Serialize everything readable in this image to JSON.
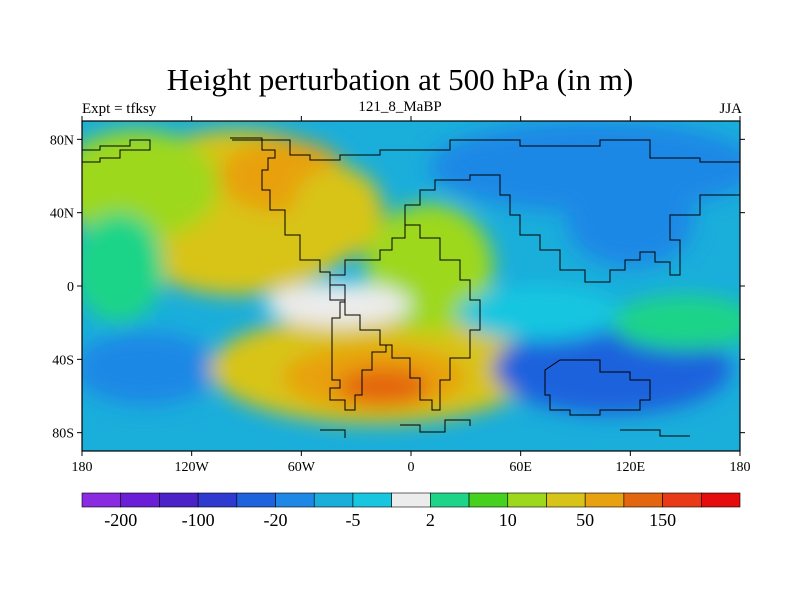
{
  "chart_data": {
    "type": "heatmap",
    "title": "Height perturbation at 500 hPa (in m)",
    "left_label": "Expt = tfksy",
    "center_label": "121_8_MaBP",
    "right_label": "JJA",
    "x_ticks": [
      {
        "value": -180,
        "label": "180"
      },
      {
        "value": -120,
        "label": "120W"
      },
      {
        "value": -60,
        "label": "60W"
      },
      {
        "value": 0,
        "label": "0"
      },
      {
        "value": 60,
        "label": "60E"
      },
      {
        "value": 120,
        "label": "120E"
      },
      {
        "value": 180,
        "label": "180"
      }
    ],
    "y_ticks": [
      {
        "value": 80,
        "label": "80N"
      },
      {
        "value": 40,
        "label": "40N"
      },
      {
        "value": 0,
        "label": "0"
      },
      {
        "value": -40,
        "label": "40S"
      },
      {
        "value": -80,
        "label": "80S"
      }
    ],
    "xlim": [
      -180,
      180
    ],
    "ylim": [
      -90,
      90
    ],
    "colorbar": {
      "colors": [
        "#8a2be2",
        "#6a1fd6",
        "#4b22c8",
        "#2f3ad0",
        "#1f62dd",
        "#1e88e6",
        "#1aaedb",
        "#19c6e0",
        "#ececec",
        "#1ed488",
        "#46d11e",
        "#9ed81d",
        "#d8c418",
        "#e8a10f",
        "#e4650f",
        "#e83a18",
        "#e40c0c"
      ],
      "labels": [
        {
          "boundary": 1,
          "label": "-200"
        },
        {
          "boundary": 3,
          "label": "-100"
        },
        {
          "boundary": 5,
          "label": "-20"
        },
        {
          "boundary": 7,
          "label": "-5"
        },
        {
          "boundary": 9,
          "label": "2"
        },
        {
          "boundary": 11,
          "label": "10"
        },
        {
          "boundary": 13,
          "label": "50"
        },
        {
          "boundary": 15,
          "label": "150"
        }
      ]
    },
    "field_blobs": [
      {
        "lon": -95,
        "lat": 40,
        "rx": 70,
        "ry": 45,
        "level": 12
      },
      {
        "lon": -70,
        "lat": 60,
        "rx": 35,
        "ry": 20,
        "level": 13
      },
      {
        "lon": -40,
        "lat": 40,
        "rx": 25,
        "ry": 25,
        "level": 12
      },
      {
        "lon": -150,
        "lat": 55,
        "rx": 45,
        "ry": 30,
        "level": 11
      },
      {
        "lon": -145,
        "lat": -45,
        "rx": 40,
        "ry": 20,
        "level": 5
      },
      {
        "lon": -20,
        "lat": -45,
        "rx": 90,
        "ry": 30,
        "level": 12
      },
      {
        "lon": -20,
        "lat": -50,
        "rx": 50,
        "ry": 18,
        "level": 13
      },
      {
        "lon": -15,
        "lat": -55,
        "rx": 25,
        "ry": 10,
        "level": 14
      },
      {
        "lon": 10,
        "lat": 10,
        "rx": 35,
        "ry": 35,
        "level": 11
      },
      {
        "lon": 100,
        "lat": 65,
        "rx": 90,
        "ry": 25,
        "level": 5
      },
      {
        "lon": 120,
        "lat": 35,
        "rx": 35,
        "ry": 25,
        "level": 5
      },
      {
        "lon": 110,
        "lat": -45,
        "rx": 65,
        "ry": 25,
        "level": 4
      },
      {
        "lon": -40,
        "lat": -10,
        "rx": 40,
        "ry": 12,
        "level": 8
      },
      {
        "lon": 70,
        "lat": -15,
        "rx": 45,
        "ry": 15,
        "level": 7
      },
      {
        "lon": 150,
        "lat": -20,
        "rx": 40,
        "ry": 15,
        "level": 9
      },
      {
        "lon": -160,
        "lat": 10,
        "rx": 25,
        "ry": 30,
        "level": 9
      }
    ]
  }
}
